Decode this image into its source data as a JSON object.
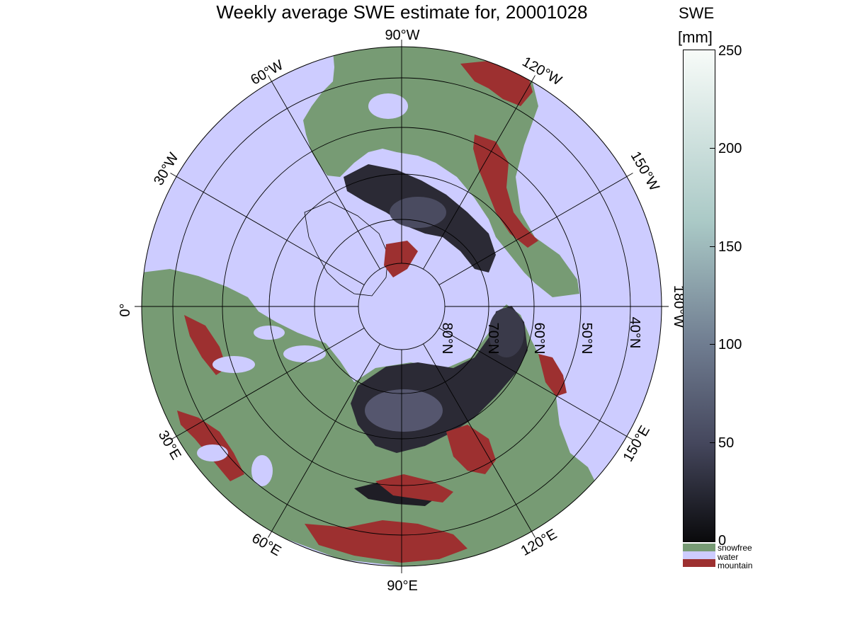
{
  "title": "Weekly average SWE estimate for, 20001028",
  "colorbar": {
    "title_line1": "SWE",
    "title_line2": "[mm]",
    "ticks": [
      "250",
      "200",
      "150",
      "100",
      "50",
      "0"
    ],
    "range": [
      0,
      250
    ],
    "colors": {
      "high": "#f7fbf8",
      "mid_high": "#aac9c6",
      "mid": "#6f7c90",
      "mid_low": "#45475d",
      "low": "#0a0a0c"
    }
  },
  "legend": [
    {
      "label": "snowfree",
      "color": "#779b74"
    },
    {
      "label": "water",
      "color": "#cdccff"
    },
    {
      "label": "mountain",
      "color": "#9d3030"
    }
  ],
  "map": {
    "projection": "north-polar stereographic",
    "longitude_labels": {
      "lon_90w": "90°W",
      "lon_60w": "60°W",
      "lon_30w": "30°W",
      "lon_0": "0°",
      "lon_120w": "120°W",
      "lon_150w": "150°W",
      "lon_180w": "180°W",
      "lon_150e": "150°E",
      "lon_120e": "120°E",
      "lon_90e": "90°E",
      "lon_60e": "60°E",
      "lon_30e": "30°E"
    },
    "latitude_labels": {
      "lat_80n": "80°N",
      "lat_70n": "70°N",
      "lat_60n": "60°N",
      "lat_50n": "50°N",
      "lat_40n": "40°N"
    },
    "colors": {
      "water": "#cdccff",
      "snowfree": "#779b74",
      "mountain": "#9d3030",
      "snow_dark": "#2b2a35",
      "snow_mid": "#55566e"
    }
  }
}
